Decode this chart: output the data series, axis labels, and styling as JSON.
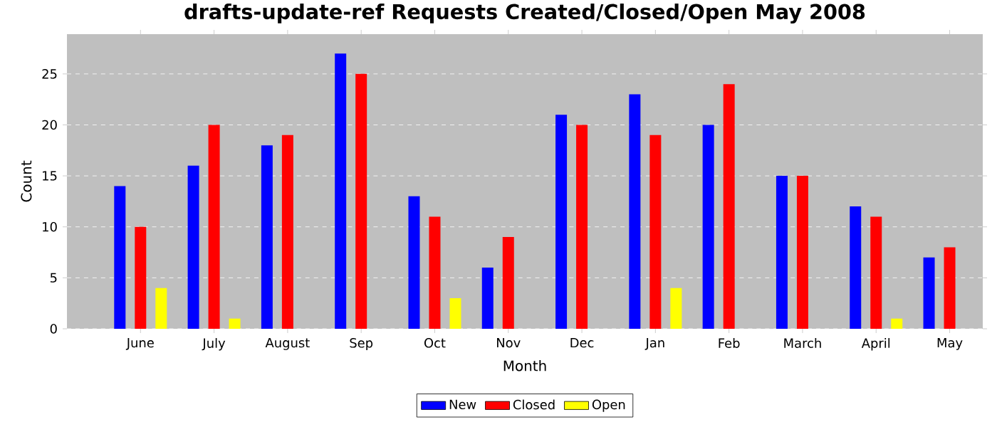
{
  "chart_data": {
    "type": "bar",
    "title": "drafts-update-ref Requests Created/Closed/Open May 2008",
    "xlabel": "Month",
    "ylabel": "Count",
    "categories": [
      "June",
      "July",
      "August",
      "Sep",
      "Oct",
      "Nov",
      "Dec",
      "Jan",
      "Feb",
      "March",
      "April",
      "May"
    ],
    "series": [
      {
        "name": "New",
        "color": "#0000ff",
        "values": [
          14,
          16,
          18,
          27,
          13,
          6,
          21,
          23,
          20,
          15,
          12,
          7
        ]
      },
      {
        "name": "Closed",
        "color": "#ff0000",
        "values": [
          10,
          20,
          19,
          25,
          11,
          9,
          20,
          19,
          24,
          15,
          11,
          8
        ]
      },
      {
        "name": "Open",
        "color": "#ffff00",
        "values": [
          4,
          1,
          0,
          0,
          3,
          0,
          0,
          4,
          0,
          0,
          1,
          0
        ]
      }
    ],
    "ylim": [
      0,
      28.9
    ],
    "yticks": [
      0,
      5,
      10,
      15,
      20,
      25
    ],
    "grid": "y",
    "legend": "bottom"
  }
}
